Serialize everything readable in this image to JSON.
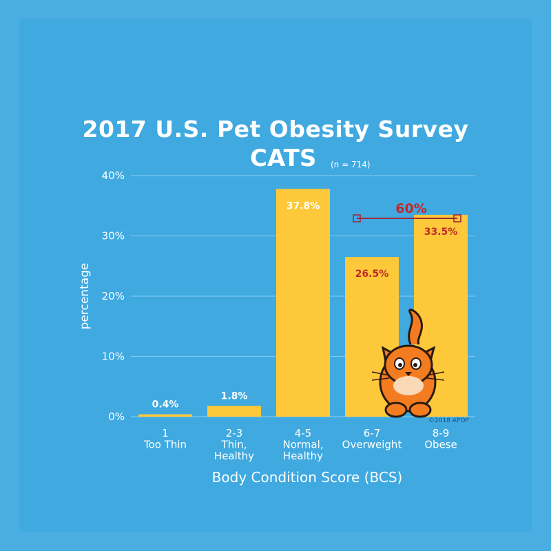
{
  "header": {
    "title": "2017 U.S. Pet Obesity Survey",
    "subtitle": "CATS",
    "sample_note": "(n = 714)"
  },
  "colors": {
    "background": "#4aaee3",
    "bar": "#fdc93a",
    "label_light": "#ffffff",
    "label_emphasis": "#c0282a",
    "bracket": "#a3293b"
  },
  "chart_data": {
    "type": "bar",
    "title": "2017 U.S. Pet Obesity Survey",
    "subtitle": "CATS",
    "xlabel": "Body Condition Score (BCS)",
    "ylabel": "percentage",
    "ylim": [
      0,
      40
    ],
    "yticks": [
      "0%",
      "10%",
      "20%",
      "30%",
      "40%"
    ],
    "grid": true,
    "categories": [
      [
        "1",
        "Too Thin"
      ],
      [
        "2-3",
        "Thin,",
        "Healthy"
      ],
      [
        "4-5",
        "Normal,",
        "Healthy"
      ],
      [
        "6-7",
        "Overweight"
      ],
      [
        "8-9",
        "Obese"
      ]
    ],
    "values": [
      0.4,
      1.8,
      37.8,
      26.5,
      33.5
    ],
    "data_labels": [
      "0.4%",
      "1.8%",
      "37.8%",
      "26.5%",
      "33.5%"
    ],
    "annotations": {
      "combined_label": "60%",
      "combined_of": [
        "6-7",
        "8-9"
      ],
      "copyright": "©2018 APOP"
    }
  }
}
